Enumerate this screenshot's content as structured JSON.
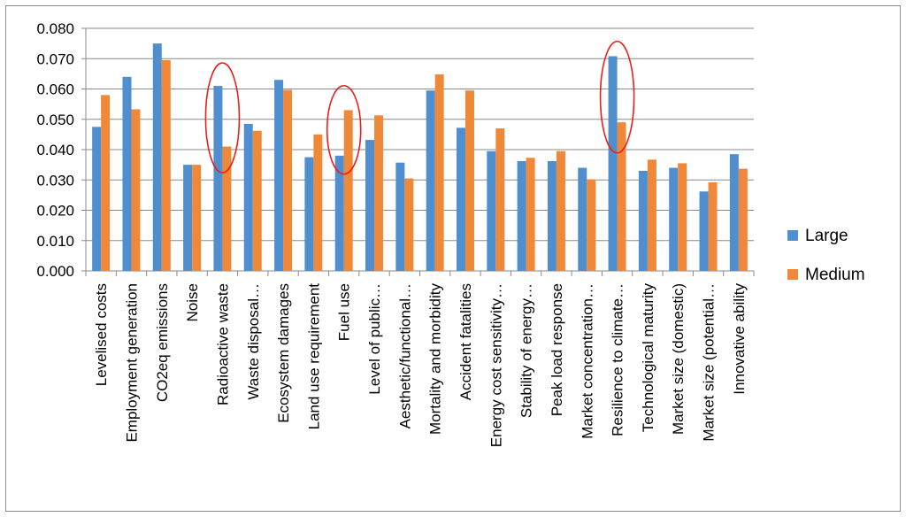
{
  "chart_data": {
    "type": "bar",
    "title": "",
    "xlabel": "",
    "ylabel": "",
    "ylim": [
      0,
      0.08
    ],
    "yticks": [
      "0.000",
      "0.010",
      "0.020",
      "0.030",
      "0.040",
      "0.050",
      "0.060",
      "0.070",
      "0.080"
    ],
    "grid": true,
    "legend_position": "right",
    "categories": [
      "Levelised costs",
      "Employment generation",
      "CO2eq emissions",
      "Noise",
      "Radioactive waste",
      "Waste disposal…",
      "Ecosystem damages",
      "Land use requirement",
      "Fuel use",
      "Level of public…",
      "Aesthetic/functional…",
      "Mortality and morbidity",
      "Accident fatalities",
      "Energy cost sensitivity…",
      "Stability of energy…",
      "Peak load response",
      "Market concentration…",
      "Resilience to climate…",
      "Technological maturity",
      "Market size (domestic)",
      "Market size (potential…",
      "Innovative ability"
    ],
    "series": [
      {
        "name": "Large",
        "color": "#4f8fd0",
        "values": [
          0.0475,
          0.064,
          0.075,
          0.035,
          0.061,
          0.0485,
          0.063,
          0.0375,
          0.038,
          0.0432,
          0.0357,
          0.0595,
          0.0472,
          0.0395,
          0.0362,
          0.0362,
          0.034,
          0.0708,
          0.033,
          0.034,
          0.0262,
          0.0385
        ]
      },
      {
        "name": "Medium",
        "color": "#f0883a",
        "values": [
          0.058,
          0.0533,
          0.0695,
          0.035,
          0.041,
          0.0462,
          0.0597,
          0.045,
          0.053,
          0.0513,
          0.0305,
          0.0648,
          0.0595,
          0.047,
          0.0373,
          0.0395,
          0.0302,
          0.049,
          0.0367,
          0.0355,
          0.0292,
          0.0337
        ]
      }
    ],
    "annotations": [
      {
        "shape": "ellipse",
        "color": "#e8201a",
        "around_category": "Radioactive waste"
      },
      {
        "shape": "ellipse",
        "color": "#e8201a",
        "around_category": "Fuel use"
      },
      {
        "shape": "ellipse",
        "color": "#e8201a",
        "around_category": "Resilience to climate…"
      }
    ]
  }
}
